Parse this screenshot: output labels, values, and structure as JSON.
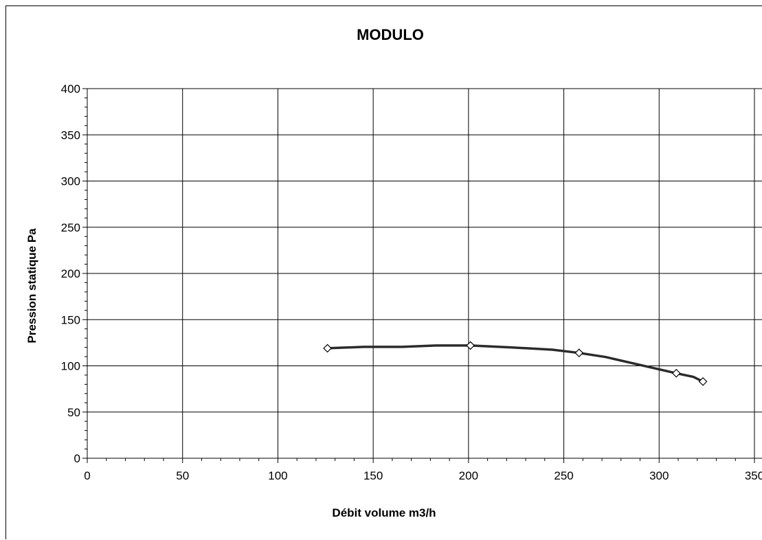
{
  "chart_data": {
    "type": "line",
    "title": "MODULO",
    "xlabel": "Débit volume m3/h",
    "ylabel": "Pression statique Pa",
    "xlim": [
      0,
      350
    ],
    "ylim": [
      0,
      400
    ],
    "x_ticks": [
      0,
      50,
      100,
      150,
      200,
      250,
      300,
      350
    ],
    "y_ticks": [
      0,
      50,
      100,
      150,
      200,
      250,
      300,
      350,
      400
    ],
    "grid": true,
    "legend": "none",
    "series": [
      {
        "color": "#2b2b2b",
        "curve": [
          [
            126,
            119
          ],
          [
            145,
            120.5
          ],
          [
            165,
            120.5
          ],
          [
            183,
            122
          ],
          [
            201,
            122
          ],
          [
            222,
            120
          ],
          [
            244,
            117.5
          ],
          [
            258,
            114
          ],
          [
            272,
            109.5
          ],
          [
            290,
            101
          ],
          [
            309,
            92
          ],
          [
            318,
            88
          ],
          [
            323,
            83
          ]
        ],
        "markers": [
          [
            126,
            119
          ],
          [
            201,
            122
          ],
          [
            258,
            114
          ],
          [
            309,
            92
          ],
          [
            323,
            83
          ]
        ]
      }
    ]
  }
}
